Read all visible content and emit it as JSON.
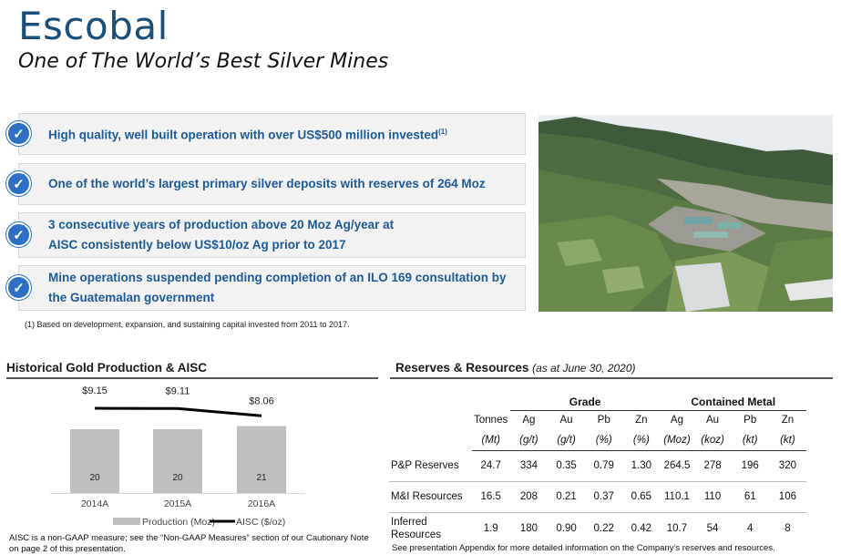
{
  "header": {
    "title": "Escobal",
    "subtitle": "One of The World’s Best Silver Mines"
  },
  "bullets": [
    {
      "text": "High quality, well built operation with over US$500 million invested",
      "sup": "(1)"
    },
    {
      "text": "One of the world’s largest primary silver deposits with reserves of 264 Moz",
      "sup": ""
    },
    {
      "text": "3 consecutive years of production above 20 Moz Ag/year at",
      "text2": "AISC consistently below US$10/oz Ag prior to 2017",
      "sup": ""
    },
    {
      "text": "Mine operations suspended pending completion of an ILO 169 consultation by",
      "text2": "the Guatemalan government",
      "sup": ""
    }
  ],
  "footnote": "(1) Based on development, expansion, and sustaining capital invested from 2011 to 2017.",
  "chart_section": {
    "title": "Historical Gold Production & AISC",
    "note": "AISC is a non-GAAP measure; see the “Non-GAAP Measures” section of our Cautionary Note on page 2 of this presentation."
  },
  "chart_data": {
    "type": "bar",
    "title": "Historical Gold Production & AISC",
    "categories": [
      "2014A",
      "2015A",
      "2016A"
    ],
    "series": [
      {
        "name": "Production (Moz)",
        "type": "bar",
        "values": [
          20,
          20,
          21
        ],
        "color": "#bfbfbf"
      },
      {
        "name": "AISC ($/oz)",
        "type": "line",
        "values": [
          9.15,
          9.11,
          8.06
        ],
        "labels": [
          "$9.15",
          "$9.11",
          "$8.06"
        ],
        "color": "#000000"
      }
    ],
    "legend": "bottom",
    "grid": false
  },
  "reserves": {
    "title": "Reserves & Resources",
    "subtitle": "(as at June 30, 2020)",
    "groups": {
      "grade": "Grade",
      "metal": "Contained Metal"
    },
    "headers": [
      "Tonnes",
      "Ag",
      "Au",
      "Pb",
      "Zn",
      "Ag",
      "Au",
      "Pb",
      "Zn"
    ],
    "units": [
      "(Mt)",
      "(g/t)",
      "(g/t)",
      "(%)",
      "(%)",
      "(Moz)",
      "(koz)",
      "(kt)",
      "(kt)"
    ],
    "rows": [
      {
        "label": "P&P Reserves",
        "values": [
          "24.7",
          "334",
          "0.35",
          "0.79",
          "1.30",
          "264.5",
          "278",
          "196",
          "320"
        ]
      },
      {
        "label": "M&I Resources",
        "values": [
          "16.5",
          "208",
          "0.21",
          "0.37",
          "0.65",
          "110.1",
          "110",
          "61",
          "106"
        ]
      },
      {
        "label": "Inferred",
        "label2": "Resources",
        "values": [
          "1.9",
          "180",
          "0.90",
          "0.22",
          "0.42",
          "10.7",
          "54",
          "4",
          "8"
        ]
      }
    ],
    "note": "See presentation Appendix for more detailed information on the Company’s reserves and resources."
  },
  "colors": {
    "brand_blue": "#1a4f7a",
    "bullet_text": "#1d5a96",
    "check": "#2d6fc2",
    "bar": "#bfbfbf"
  }
}
